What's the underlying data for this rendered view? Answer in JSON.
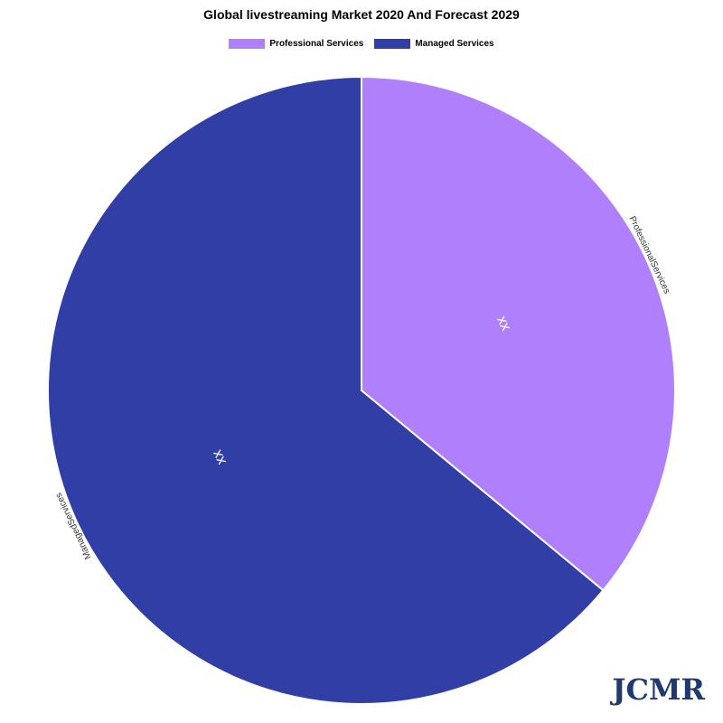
{
  "chart_data": {
    "type": "pie",
    "title": "Global livestreaming Market 2020 And Forecast 2029",
    "legend_position": "top-center",
    "slices": [
      {
        "label": "Professional Services",
        "outer_label": "ProfessionalServices",
        "value": 36,
        "value_label": "xx",
        "color": "#af7ffc"
      },
      {
        "label": "Managed Services",
        "outer_label": "ManagedServices",
        "value": 64,
        "value_label": "xx",
        "color": "#303ea5"
      }
    ]
  },
  "branding": {
    "logo_text": "JCMR"
  }
}
